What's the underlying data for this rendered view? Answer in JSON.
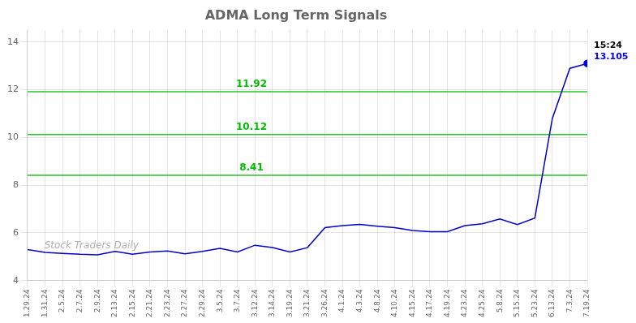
{
  "chart_data": {
    "type": "line",
    "title": "ADMA Long Term Signals",
    "categories": [
      "1.29.24",
      "1.31.24",
      "2.5.24",
      "2.7.24",
      "2.9.24",
      "2.13.24",
      "2.15.24",
      "2.21.24",
      "2.23.24",
      "2.27.24",
      "2.29.24",
      "3.5.24",
      "3.7.24",
      "3.12.24",
      "3.14.24",
      "3.19.24",
      "3.21.24",
      "3.26.24",
      "4.1.24",
      "4.3.24",
      "4.8.24",
      "4.10.24",
      "4.15.24",
      "4.17.24",
      "4.19.24",
      "4.23.24",
      "4.25.24",
      "5.8.24",
      "5.15.24",
      "5.23.24",
      "6.13.24",
      "7.3.24",
      "7.19.24"
    ],
    "values": [
      5.3,
      5.18,
      5.14,
      5.1,
      5.08,
      5.22,
      5.1,
      5.2,
      5.24,
      5.12,
      5.22,
      5.35,
      5.2,
      5.48,
      5.38,
      5.2,
      5.38,
      6.22,
      6.3,
      6.35,
      6.28,
      6.22,
      6.1,
      6.05,
      6.05,
      6.3,
      6.38,
      6.58,
      6.35,
      6.62,
      10.8,
      12.9,
      13.105
    ],
    "color": "#0000cc",
    "last_point_color": "#0000ee",
    "ylim": [
      4,
      14.5
    ],
    "yticks": [
      4,
      6,
      8,
      10,
      12,
      14
    ],
    "grid": true,
    "hlines": [
      {
        "value": 11.92,
        "label": "11.92",
        "color": "#00bb00"
      },
      {
        "value": 10.12,
        "label": "10.12",
        "color": "#00bb00"
      },
      {
        "value": 8.41,
        "label": "8.41",
        "color": "#00bb00"
      }
    ],
    "annotations": [
      {
        "text": "15:24",
        "color": "#000000"
      },
      {
        "text": "13.105",
        "color": "#0000ee"
      }
    ],
    "watermark": "Stock Traders Daily"
  }
}
